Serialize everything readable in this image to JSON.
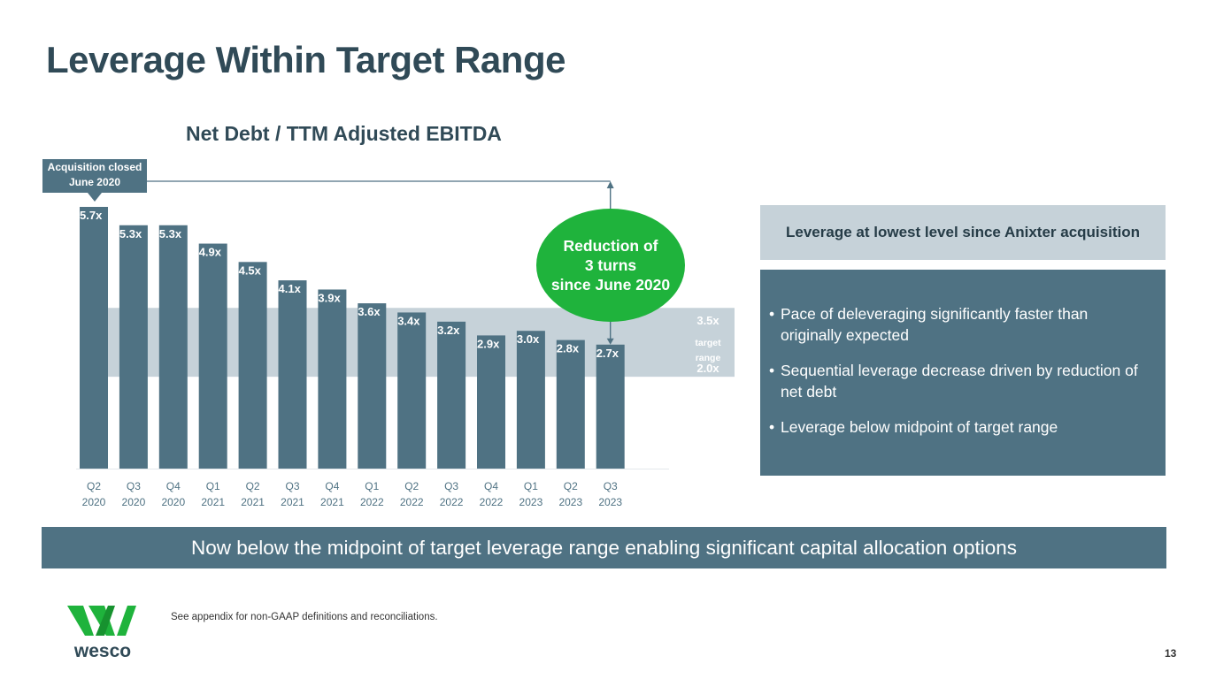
{
  "title": "Leverage Within Target Range",
  "chart_title": "Net Debt / TTM Adjusted EBITDA",
  "callout": {
    "line1": "Acquisition closed",
    "line2": "June 2020"
  },
  "reduction": {
    "line1": "Reduction of",
    "line2": "3 turns",
    "line3": "since June 2020"
  },
  "target_range": {
    "high_label": "3.5x",
    "mid_label_1": "target",
    "mid_label_2": "range",
    "low_label": "2.0x"
  },
  "side_panel": {
    "header": "Leverage at lowest level since Anixter acquisition",
    "bullets": [
      "Pace of deleveraging significantly faster than originally expected",
      "Sequential leverage decrease driven by reduction of net debt",
      "Leverage below midpoint of target range"
    ]
  },
  "banner": "Now below the midpoint of target leverage range enabling significant capital allocation options",
  "footnote": "See appendix for non-GAAP definitions and reconciliations.",
  "page_number": "13",
  "logo_text": "wesco",
  "colors": {
    "bar": "#4f7283",
    "target_band": "#c6d2d9",
    "green": "#1fb33c",
    "title": "#304a57"
  },
  "chart_data": {
    "type": "bar",
    "title": "Net Debt / TTM Adjusted EBITDA",
    "categories": [
      [
        "Q2",
        "2020"
      ],
      [
        "Q3",
        "2020"
      ],
      [
        "Q4",
        "2020"
      ],
      [
        "Q1",
        "2021"
      ],
      [
        "Q2",
        "2021"
      ],
      [
        "Q3",
        "2021"
      ],
      [
        "Q4",
        "2021"
      ],
      [
        "Q1",
        "2022"
      ],
      [
        "Q2",
        "2022"
      ],
      [
        "Q3",
        "2022"
      ],
      [
        "Q4",
        "2022"
      ],
      [
        "Q1",
        "2023"
      ],
      [
        "Q2",
        "2023"
      ],
      [
        "Q3",
        "2023"
      ]
    ],
    "values": [
      5.7,
      5.3,
      5.3,
      4.9,
      4.5,
      4.1,
      3.9,
      3.6,
      3.4,
      3.2,
      2.9,
      3.0,
      2.8,
      2.7
    ],
    "labels": [
      "5.7x",
      "5.3x",
      "5.3x",
      "4.9x",
      "4.5x",
      "4.1x",
      "3.9x",
      "3.6x",
      "3.4x",
      "3.2x",
      "2.9x",
      "3.0x",
      "2.8x",
      "2.7x"
    ],
    "target_range": [
      2.0,
      3.5
    ],
    "xlabel": "",
    "ylabel": "",
    "ylim": [
      0,
      5.7
    ]
  }
}
